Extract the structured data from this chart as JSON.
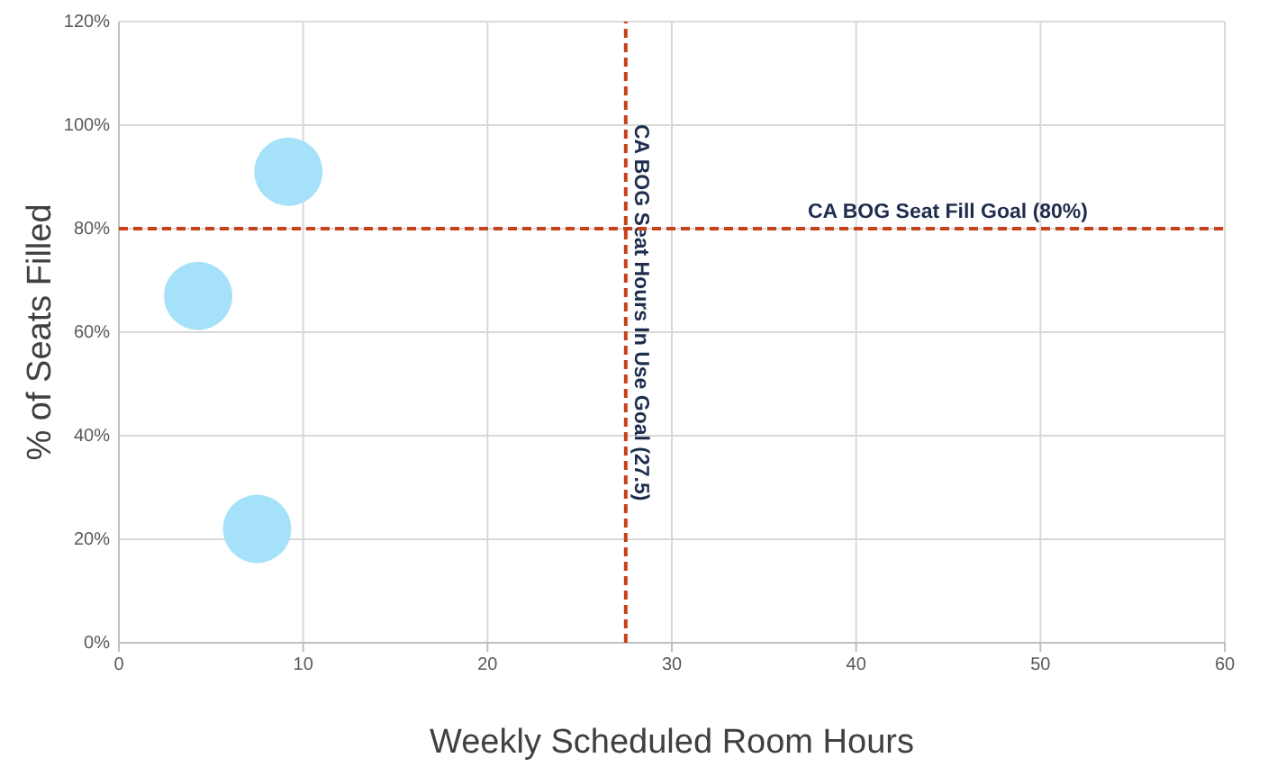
{
  "chart_data": {
    "type": "bubble",
    "xlabel": "Weekly Scheduled Room Hours",
    "ylabel": "% of Seats Filled",
    "x": [
      4.3,
      9.2,
      7.5
    ],
    "values": [
      67,
      91,
      22
    ],
    "sizes": [
      1,
      1,
      1
    ],
    "color": "#a6e1fa",
    "xlim": [
      0,
      60
    ],
    "xticks": [
      0,
      10,
      20,
      30,
      40,
      50,
      60
    ],
    "ylim": [
      0,
      120
    ],
    "yticks": [
      {
        "value": 0,
        "label": "0%"
      },
      {
        "value": 20,
        "label": "20%"
      },
      {
        "value": 40,
        "label": "40%"
      },
      {
        "value": 60,
        "label": "60%"
      },
      {
        "value": 80,
        "label": "80%"
      },
      {
        "value": 100,
        "label": "100%"
      },
      {
        "value": 120,
        "label": "120%"
      }
    ],
    "grid": true,
    "ref_lines": [
      {
        "axis": "x",
        "value": 27.5,
        "label": "CA BOG Seat Hours In Use Goal (27.5)",
        "color": "#c7411b",
        "line_style": "dashed"
      },
      {
        "axis": "y",
        "value": 80,
        "label": "CA BOG Seat Fill Goal (80%)",
        "color": "#c7411b",
        "line_style": "dashed"
      }
    ]
  }
}
